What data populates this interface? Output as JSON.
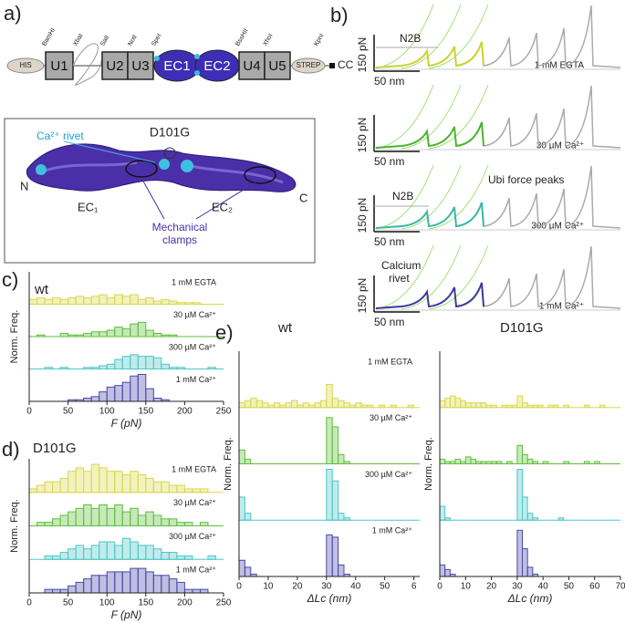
{
  "panel_a": {
    "label": "a)",
    "construct": [
      "HIS",
      "U1",
      "U2",
      "U3",
      "EC1",
      "EC2",
      "U4",
      "U5",
      "STREP",
      "CC"
    ],
    "sites": [
      "BamHI",
      "XbaI",
      "SalI",
      "NotI",
      "SpeI",
      "BssHII",
      "XhoI",
      "KpnI"
    ],
    "rivet": "Ca²⁺ rivet",
    "mutation": "D101G",
    "n_term": "N",
    "c_term": "C",
    "ec1": "EC₁",
    "ec2": "EC₂",
    "clamps": [
      "Mechanical",
      "clamps"
    ]
  },
  "panel_b": {
    "label": "b)",
    "traces": [
      {
        "force_scale": "150 pN",
        "length_scale": "50 nm",
        "condition": "1 mM EGTA",
        "annotations": [
          "N2B"
        ]
      },
      {
        "force_scale": "150 pN",
        "length_scale": "50 nm",
        "condition": "30 µM Ca²⁺",
        "annotations": []
      },
      {
        "force_scale": "150 pN",
        "length_scale": "50 nm",
        "condition": "300 µM Ca²⁺",
        "annotations": [
          "Ubi force peaks",
          "N2B"
        ]
      },
      {
        "force_scale": "150 pN",
        "length_scale": "50 nm",
        "condition": "1 mM Ca²⁺",
        "annotations": [
          "Calcium",
          "rivet"
        ]
      }
    ]
  },
  "chart_data": [
    {
      "type": "histogram",
      "panel_label": "c)",
      "title": "wt",
      "xlabel": "F (pN)",
      "ylabel": "Norm. Freq.",
      "xlim": [
        0,
        250
      ],
      "xticks": [
        0,
        50,
        100,
        150,
        200,
        250
      ],
      "bins": [
        0,
        10,
        20,
        30,
        40,
        50,
        60,
        70,
        80,
        90,
        100,
        110,
        120,
        130,
        140,
        150,
        160,
        170,
        180,
        190,
        200,
        210,
        220,
        230,
        240,
        250
      ],
      "series": [
        {
          "name": "1 mM EGTA",
          "color": "#d9d84a",
          "values": [
            3,
            4,
            3,
            4,
            3,
            4,
            5,
            4,
            5,
            6,
            4,
            6,
            5,
            6,
            3,
            4,
            2,
            3,
            2,
            1,
            1,
            1,
            0,
            0,
            0
          ]
        },
        {
          "name": "30 µM Ca²⁺",
          "color": "#5fbf3a",
          "values": [
            0,
            1,
            0,
            0,
            2,
            1,
            1,
            2,
            3,
            3,
            4,
            6,
            5,
            8,
            9,
            4,
            2,
            1,
            1,
            0,
            0,
            0,
            0,
            0,
            0
          ]
        },
        {
          "name": "300 µM Ca²⁺",
          "color": "#4cc7c7",
          "values": [
            0,
            0,
            1,
            0,
            1,
            0,
            0,
            1,
            1,
            2,
            3,
            6,
            8,
            9,
            8,
            8,
            7,
            3,
            1,
            1,
            0,
            0,
            0,
            1,
            0
          ]
        },
        {
          "name": "1 mM Ca²⁺",
          "color": "#4a48a8",
          "values": [
            0,
            0,
            0,
            0,
            0,
            1,
            1,
            2,
            3,
            6,
            9,
            10,
            12,
            16,
            17,
            8,
            2,
            1,
            0,
            0,
            0,
            0,
            0,
            0,
            0
          ]
        }
      ]
    },
    {
      "type": "histogram",
      "panel_label": "d)",
      "title": "D101G",
      "xlabel": "F (pN)",
      "ylabel": "Norm. Freq.",
      "xlim": [
        0,
        250
      ],
      "xticks": [
        0,
        50,
        100,
        150,
        200,
        250
      ],
      "bins": [
        0,
        10,
        20,
        30,
        40,
        50,
        60,
        70,
        80,
        90,
        100,
        110,
        120,
        130,
        140,
        150,
        160,
        170,
        180,
        190,
        200,
        210,
        220,
        230,
        240,
        250
      ],
      "series": [
        {
          "name": "1 mM EGTA",
          "color": "#d9d84a",
          "values": [
            1,
            2,
            3,
            3,
            4,
            6,
            7,
            6,
            8,
            7,
            6,
            6,
            5,
            6,
            5,
            4,
            3,
            3,
            2,
            2,
            1,
            1,
            1,
            0,
            0
          ]
        },
        {
          "name": "30 µM Ca²⁺",
          "color": "#5fbf3a",
          "values": [
            0,
            1,
            1,
            2,
            3,
            4,
            5,
            6,
            5,
            6,
            5,
            6,
            4,
            5,
            3,
            4,
            3,
            2,
            2,
            1,
            1,
            0,
            1,
            0,
            0
          ]
        },
        {
          "name": "300 µM Ca²⁺",
          "color": "#4cc7c7",
          "values": [
            0,
            0,
            1,
            1,
            2,
            3,
            4,
            3,
            4,
            5,
            5,
            4,
            6,
            5,
            4,
            4,
            3,
            2,
            2,
            1,
            1,
            0,
            0,
            1,
            0
          ]
        },
        {
          "name": "1 mM Ca²⁺",
          "color": "#4a48a8",
          "values": [
            0,
            0,
            1,
            1,
            1,
            2,
            3,
            4,
            5,
            5,
            6,
            6,
            6,
            7,
            7,
            6,
            5,
            5,
            4,
            3,
            1,
            1,
            1,
            0,
            0
          ]
        }
      ]
    },
    {
      "type": "histogram",
      "panel_label": "e)",
      "title": "wt",
      "xlabel": "ΔLc (nm)",
      "ylabel": "Norm. Freq.",
      "xlim": [
        0,
        62
      ],
      "xticks": [
        0,
        10,
        20,
        30,
        40,
        50,
        {
          "value": 60,
          "label": "6"
        }
      ],
      "bins": [
        0,
        2,
        4,
        6,
        8,
        10,
        12,
        14,
        16,
        18,
        20,
        22,
        24,
        26,
        28,
        30,
        32,
        34,
        36,
        38,
        40,
        42,
        44,
        46,
        48,
        50,
        52,
        54,
        56,
        58,
        60,
        62
      ],
      "series": [
        {
          "name": "1 mM EGTA",
          "color": "#d9d84a",
          "values": [
            2,
            3,
            4,
            3,
            2,
            1,
            2,
            1,
            2,
            3,
            1,
            2,
            1,
            2,
            3,
            10,
            4,
            3,
            2,
            1,
            2,
            1,
            1,
            0,
            1,
            0,
            1,
            0,
            0,
            1,
            0
          ]
        },
        {
          "name": "30 µM Ca²⁺",
          "color": "#5fbf3a",
          "values": [
            6,
            2,
            0,
            0,
            0,
            0,
            0,
            0,
            0,
            0,
            0,
            0,
            0,
            0,
            0,
            20,
            16,
            4,
            1,
            0,
            0,
            0,
            0,
            0,
            0,
            0,
            0,
            0,
            0,
            0,
            0
          ]
        },
        {
          "name": "300 µM Ca²⁺",
          "color": "#4cc7c7",
          "values": [
            10,
            3,
            0,
            0,
            0,
            0,
            0,
            0,
            0,
            0,
            0,
            0,
            0,
            0,
            0,
            22,
            17,
            3,
            1,
            0,
            0,
            0,
            0,
            0,
            0,
            0,
            0,
            0,
            0,
            0,
            0
          ]
        },
        {
          "name": "1 mM Ca²⁺",
          "color": "#4a48a8",
          "values": [
            7,
            4,
            1,
            0,
            0,
            0,
            0,
            0,
            0,
            0,
            0,
            0,
            0,
            0,
            0,
            18,
            17,
            5,
            1,
            0,
            0,
            0,
            0,
            0,
            0,
            0,
            0,
            0,
            0,
            0,
            0
          ]
        }
      ]
    },
    {
      "type": "histogram",
      "title": "D101G",
      "xlabel": "ΔLc (nm)",
      "ylabel": "Norm. Freq.",
      "xlim": [
        0,
        70
      ],
      "xticks": [
        0,
        10,
        20,
        30,
        40,
        50,
        60,
        70
      ],
      "bins": [
        0,
        2,
        4,
        6,
        8,
        10,
        12,
        14,
        16,
        18,
        20,
        22,
        24,
        26,
        28,
        30,
        32,
        34,
        36,
        38,
        40,
        42,
        44,
        46,
        48,
        50,
        52,
        54,
        56,
        58,
        60,
        62,
        64,
        66,
        68,
        70
      ],
      "series": [
        {
          "color": "#d9d84a",
          "values": [
            3,
            4,
            5,
            4,
            3,
            2,
            2,
            2,
            2,
            1,
            1,
            0,
            1,
            1,
            1,
            5,
            2,
            1,
            1,
            1,
            0,
            1,
            1,
            0,
            1,
            0,
            0,
            0,
            1,
            0,
            0,
            1,
            0,
            0,
            0
          ]
        },
        {
          "color": "#5fbf3a",
          "values": [
            2,
            1,
            1,
            2,
            1,
            3,
            2,
            1,
            1,
            1,
            1,
            1,
            0,
            1,
            0,
            8,
            4,
            2,
            1,
            0,
            1,
            0,
            0,
            0,
            1,
            0,
            0,
            0,
            1,
            0,
            1,
            0,
            0,
            0,
            0
          ]
        },
        {
          "color": "#4cc7c7",
          "values": [
            6,
            1,
            0,
            0,
            0,
            0,
            0,
            0,
            0,
            0,
            0,
            0,
            0,
            0,
            0,
            22,
            10,
            3,
            1,
            0,
            0,
            0,
            0,
            1,
            0,
            0,
            0,
            0,
            0,
            0,
            0,
            0,
            0,
            0,
            0
          ]
        },
        {
          "color": "#4a48a8",
          "values": [
            5,
            3,
            1,
            0,
            0,
            0,
            0,
            0,
            0,
            0,
            0,
            0,
            0,
            0,
            0,
            20,
            12,
            4,
            1,
            0,
            0,
            0,
            0,
            0,
            0,
            0,
            0,
            0,
            0,
            0,
            0,
            0,
            0,
            0,
            0
          ]
        }
      ]
    }
  ]
}
